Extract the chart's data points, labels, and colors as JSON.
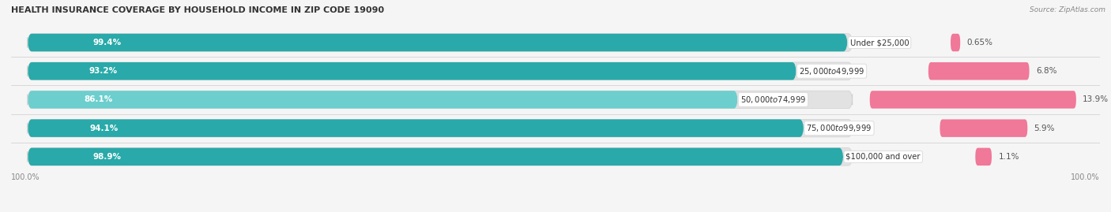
{
  "title": "HEALTH INSURANCE COVERAGE BY HOUSEHOLD INCOME IN ZIP CODE 19090",
  "source": "Source: ZipAtlas.com",
  "categories": [
    "Under $25,000",
    "$25,000 to $49,999",
    "$50,000 to $74,999",
    "$75,000 to $99,999",
    "$100,000 and over"
  ],
  "with_coverage": [
    99.4,
    93.2,
    86.1,
    94.1,
    98.9
  ],
  "without_coverage": [
    0.65,
    6.8,
    13.9,
    5.9,
    1.1
  ],
  "with_coverage_labels": [
    "99.4%",
    "93.2%",
    "86.1%",
    "94.1%",
    "98.9%"
  ],
  "without_coverage_labels": [
    "0.65%",
    "6.8%",
    "13.9%",
    "5.9%",
    "1.1%"
  ],
  "color_with_dark": "#29a9a9",
  "color_with_light": "#6dcece",
  "color_without": "#f07898",
  "color_without_light": "#f8b8c8",
  "bg_color": "#f5f5f5",
  "bar_bg_color": "#e8e8e8",
  "x_left_label": "100.0%",
  "x_right_label": "100.0%",
  "bar_height": 0.62,
  "bar_total": 100,
  "xlim_left": -2,
  "xlim_right": 130
}
